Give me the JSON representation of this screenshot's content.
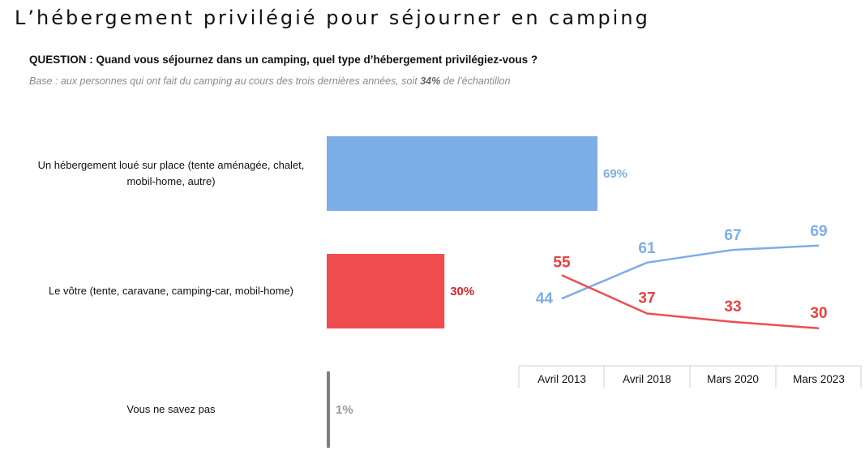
{
  "title": "L’hébergement privilégié pour séjourner en camping",
  "question": "QUESTION : Quand vous séjournez dans un camping, quel type d’hébergement privilégiez-vous ?",
  "base": {
    "prefix": "Base : aux personnes qui ont fait du camping au cours des trois dernières années, soit ",
    "highlight": "34%",
    "suffix": " de l’échantillon"
  },
  "chart_data": [
    {
      "type": "bar",
      "orientation": "horizontal",
      "categories": [
        [
          "Un hébergement loué sur place (tente aménagée, chalet,",
          "mobil-home, autre)"
        ],
        [
          "Le vôtre (tente, caravane, camping-car, mobil-home)"
        ],
        [
          "Vous ne savez pas"
        ]
      ],
      "values": [
        69,
        30,
        1
      ],
      "value_labels": [
        "69%",
        "30%",
        "1%"
      ],
      "colors": [
        "#7daee6",
        "#f04d4f",
        "#7f7f7f"
      ],
      "label_colors": [
        "#7daee6",
        "#d9252a",
        "#9a9a9a"
      ],
      "xlim": [
        0,
        69
      ]
    },
    {
      "type": "line",
      "x": [
        "Avril 2013",
        "Avril 2018",
        "Mars 2020",
        "Mars 2023"
      ],
      "series": [
        {
          "values": [
            44,
            61,
            67,
            69
          ],
          "color": "#7daee6"
        },
        {
          "values": [
            55,
            37,
            33,
            30
          ],
          "color": "#f04d4f"
        }
      ],
      "ylim": [
        28,
        72
      ],
      "grid": false
    }
  ]
}
